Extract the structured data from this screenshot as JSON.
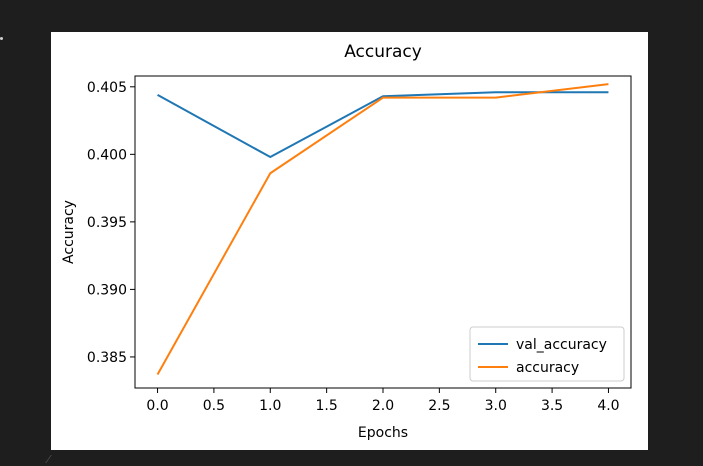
{
  "chart_data": {
    "type": "line",
    "title": "Accuracy",
    "xlabel": "Epochs",
    "ylabel": "Accuracy",
    "x": [
      0,
      1,
      2,
      3,
      4
    ],
    "xlim": [
      -0.2,
      4.2
    ],
    "ylim": [
      0.3827,
      0.4058
    ],
    "xticks": [
      0.0,
      0.5,
      1.0,
      1.5,
      2.0,
      2.5,
      3.0,
      3.5,
      4.0
    ],
    "xtick_labels": [
      "0.0",
      "0.5",
      "1.0",
      "1.5",
      "2.0",
      "2.5",
      "3.0",
      "3.5",
      "4.0"
    ],
    "yticks": [
      0.385,
      0.39,
      0.395,
      0.4,
      0.405
    ],
    "ytick_labels": [
      "0.385",
      "0.390",
      "0.395",
      "0.400",
      "0.405"
    ],
    "series": [
      {
        "name": "val_accuracy",
        "color": "#1f77b4",
        "values": [
          0.4044,
          0.3998,
          0.4043,
          0.4046,
          0.4046
        ]
      },
      {
        "name": "accuracy",
        "color": "#ff7f0e",
        "values": [
          0.3837,
          0.3986,
          0.4042,
          0.4042,
          0.4052
        ]
      }
    ],
    "grid": false,
    "legend_position": "lower right"
  }
}
